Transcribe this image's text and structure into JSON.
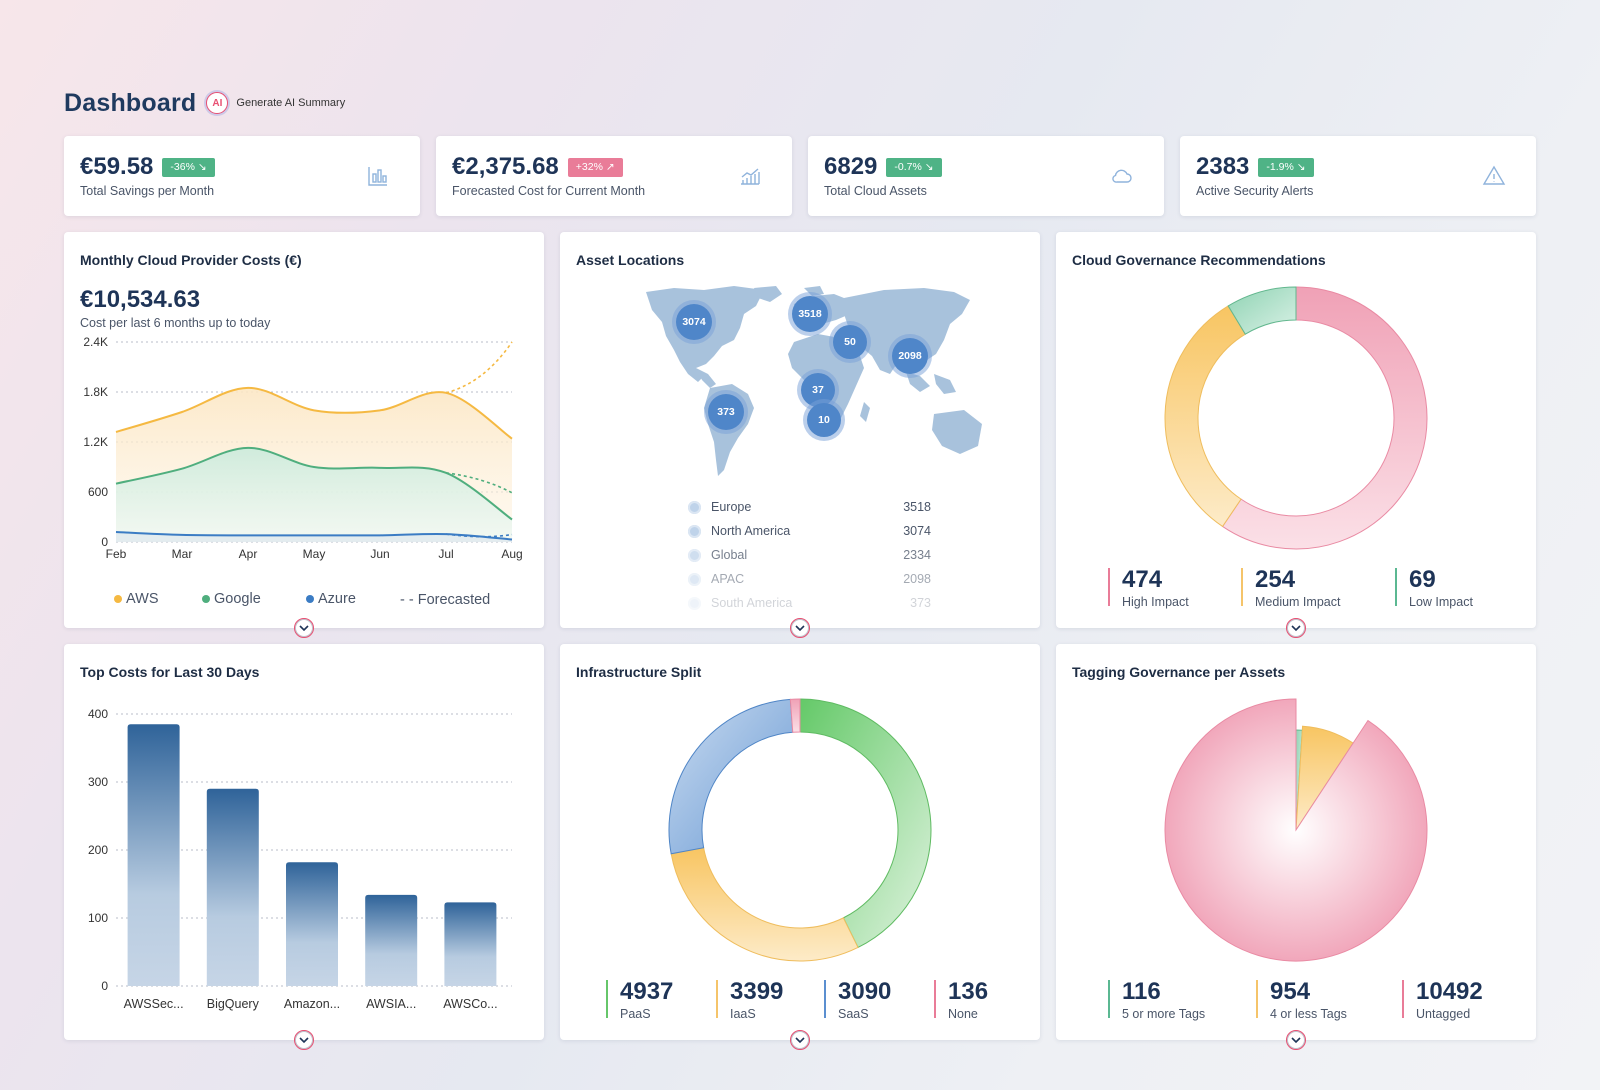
{
  "header": {
    "title": "Dashboard",
    "ai_badge": "AI",
    "ai_link": "Generate AI Summary"
  },
  "kpis": [
    {
      "value": "€59.58",
      "badge": "-36% ↘",
      "badge_color": "#4fb386",
      "label": "Total Savings per Month",
      "icon": "bar-chart-icon"
    },
    {
      "value": "€2,375.68",
      "badge": "+32% ↗",
      "badge_color": "#e97c98",
      "label": "Forecasted Cost for Current Month",
      "icon": "trend-chart-icon"
    },
    {
      "value": "6829",
      "badge": "-0.7% ↘",
      "badge_color": "#4fb386",
      "label": "Total Cloud Assets",
      "icon": "cloud-icon"
    },
    {
      "value": "2383",
      "badge": "-1.9% ↘",
      "badge_color": "#4fb386",
      "label": "Active Security Alerts",
      "icon": "warning-icon"
    }
  ],
  "monthly_costs": {
    "title": "Monthly Cloud Provider Costs (€)",
    "total": "€10,534.63",
    "subtitle": "Cost per last 6 months up to today",
    "legend": {
      "aws": "AWS",
      "google": "Google",
      "azure": "Azure",
      "forecasted": "- - Forecasted"
    }
  },
  "asset_locations": {
    "title": "Asset Locations",
    "markers": [
      {
        "label": "3074",
        "region": "North America"
      },
      {
        "label": "3518",
        "region": "Europe"
      },
      {
        "label": "50",
        "region": "Middle East"
      },
      {
        "label": "2098",
        "region": "APAC"
      },
      {
        "label": "37",
        "region": "Africa"
      },
      {
        "label": "10",
        "region": "Southern Africa"
      },
      {
        "label": "373",
        "region": "South America"
      }
    ],
    "legend": [
      {
        "name": "Europe",
        "value": "3518"
      },
      {
        "name": "North America",
        "value": "3074"
      },
      {
        "name": "Global",
        "value": "2334"
      },
      {
        "name": "APAC",
        "value": "2098"
      },
      {
        "name": "South America",
        "value": "373"
      }
    ]
  },
  "governance": {
    "title": "Cloud Governance Recommendations",
    "stats": [
      {
        "value": "474",
        "label": "High Impact",
        "color": "#e97c98"
      },
      {
        "value": "254",
        "label": "Medium Impact",
        "color": "#f5c46a"
      },
      {
        "value": "69",
        "label": "Low Impact",
        "color": "#5bb892"
      }
    ]
  },
  "top_costs": {
    "title": "Top Costs for Last 30 Days"
  },
  "infra": {
    "title": "Infrastructure Split",
    "stats": [
      {
        "value": "4937",
        "label": "PaaS",
        "color": "#66c66a"
      },
      {
        "value": "3399",
        "label": "IaaS",
        "color": "#f5c46a"
      },
      {
        "value": "3090",
        "label": "SaaS",
        "color": "#5b8fd0"
      },
      {
        "value": "136",
        "label": "None",
        "color": "#e97c98"
      }
    ]
  },
  "tagging": {
    "title": "Tagging Governance per Assets",
    "stats": [
      {
        "value": "116",
        "label": "5 or more Tags",
        "color": "#5bb892"
      },
      {
        "value": "954",
        "label": "4 or less Tags",
        "color": "#f5c46a"
      },
      {
        "value": "10492",
        "label": "Untagged",
        "color": "#e97c98"
      }
    ]
  },
  "chart_data": [
    {
      "type": "area",
      "title": "Monthly Cloud Provider Costs (€)",
      "x": [
        "Feb",
        "Mar",
        "Apr",
        "May",
        "Jun",
        "Jul",
        "Aug"
      ],
      "ylim": [
        0,
        2400
      ],
      "yticks": [
        "0",
        "600",
        "1.2K",
        "1.8K",
        "2.4K"
      ],
      "series": [
        {
          "name": "AWS",
          "color": "#f5b942",
          "values": [
            1320,
            1560,
            1850,
            1580,
            1580,
            1790,
            1240
          ]
        },
        {
          "name": "Google",
          "color": "#4fae7e",
          "values": [
            700,
            880,
            1130,
            900,
            890,
            830,
            270
          ]
        },
        {
          "name": "Azure",
          "color": "#3b7cc4",
          "values": [
            120,
            85,
            80,
            80,
            80,
            95,
            30
          ]
        }
      ],
      "forecast": {
        "name": "Forecasted",
        "aws": [
          1790,
          2400
        ],
        "google": [
          830,
          590
        ],
        "azure": [
          95,
          90
        ]
      },
      "legend": "bottom"
    },
    {
      "type": "pie",
      "title": "Cloud Governance Recommendations",
      "categories": [
        "High Impact",
        "Medium Impact",
        "Low Impact"
      ],
      "values": [
        474,
        254,
        69
      ],
      "colors": [
        "#e97c98",
        "#f5c46a",
        "#5bb892"
      ]
    },
    {
      "type": "bar",
      "title": "Top Costs for Last 30 Days",
      "categories": [
        "AWSSec...",
        "BigQuery",
        "Amazon...",
        "AWSIA...",
        "AWSCo..."
      ],
      "values": [
        385,
        290,
        182,
        134,
        123
      ],
      "ylim": [
        0,
        400
      ],
      "yticks": [
        "0",
        "100",
        "200",
        "300",
        "400"
      ]
    },
    {
      "type": "pie",
      "title": "Infrastructure Split",
      "categories": [
        "PaaS",
        "IaaS",
        "SaaS",
        "None"
      ],
      "values": [
        4937,
        3399,
        3090,
        136
      ],
      "colors": [
        "#66c66a",
        "#f5c46a",
        "#5b8fd0",
        "#e97c98"
      ]
    },
    {
      "type": "pie",
      "title": "Tagging Governance per Assets",
      "categories": [
        "5 or more Tags",
        "4 or less Tags",
        "Untagged"
      ],
      "values": [
        116,
        954,
        10492
      ],
      "colors": [
        "#5bb892",
        "#f5c46a",
        "#e97c98"
      ]
    }
  ]
}
